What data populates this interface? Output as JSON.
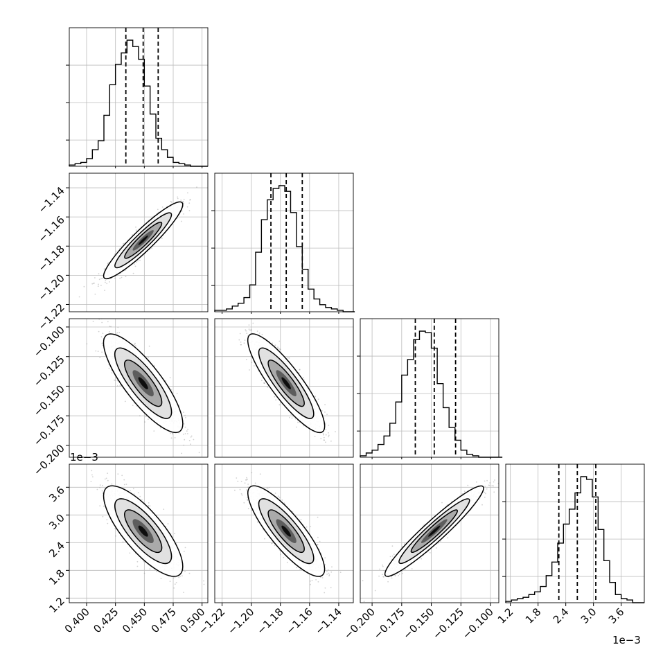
{
  "chart_data": {
    "type": "corner",
    "parameters": [
      {
        "range": [
          0.385,
          0.505
        ],
        "ticks": [
          0.4,
          0.425,
          0.45,
          0.475,
          0.5
        ],
        "tick_labels": [
          "0.400",
          "0.425",
          "0.450",
          "0.475",
          "0.500"
        ],
        "quantiles": [
          0.434,
          0.449,
          0.462
        ],
        "hist": {
          "bin_start": 0.385,
          "bin_width": 0.005,
          "counts": [
            0.01,
            0.02,
            0.03,
            0.06,
            0.13,
            0.2,
            0.4,
            0.64,
            0.8,
            0.89,
            0.99,
            0.94,
            0.84,
            0.63,
            0.41,
            0.22,
            0.13,
            0.07,
            0.03,
            0.02,
            0.01,
            0.0,
            0.0,
            0.0
          ]
        }
      },
      {
        "range": [
          -1.225,
          -1.13
        ],
        "ticks": [
          -1.22,
          -1.2,
          -1.18,
          -1.16,
          -1.14
        ],
        "tick_labels": [
          "−1.22",
          "−1.20",
          "−1.18",
          "−1.16",
          "−1.14"
        ],
        "quantiles": [
          -1.1865,
          -1.176,
          -1.165
        ],
        "hist": {
          "bin_start": -1.225,
          "bin_width": 0.004,
          "counts": [
            0.01,
            0.01,
            0.02,
            0.04,
            0.06,
            0.1,
            0.19,
            0.42,
            0.65,
            0.79,
            0.87,
            0.89,
            0.85,
            0.7,
            0.46,
            0.3,
            0.16,
            0.09,
            0.05,
            0.03,
            0.02,
            0.01,
            0.0,
            0.0
          ]
        }
      },
      {
        "range": [
          -0.21,
          -0.093
        ],
        "ticks": [
          -0.2,
          -0.175,
          -0.15,
          -0.125,
          -0.1
        ],
        "tick_labels": [
          "−0.200",
          "−0.175",
          "−0.150",
          "−0.125",
          "−0.100"
        ],
        "quantiles": [
          -0.1635,
          -0.1475,
          -0.1295
        ],
        "hist": {
          "bin_start": -0.21,
          "bin_width": 0.005,
          "counts": [
            0.01,
            0.03,
            0.05,
            0.09,
            0.15,
            0.24,
            0.39,
            0.58,
            0.69,
            0.83,
            0.89,
            0.88,
            0.77,
            0.52,
            0.35,
            0.21,
            0.12,
            0.05,
            0.02,
            0.01,
            0.0,
            0.0,
            0.0,
            0.0
          ]
        }
      },
      {
        "range": [
          1.1,
          4.1
        ],
        "ticks": [
          1.2,
          1.8,
          2.4,
          3.0,
          3.6
        ],
        "tick_labels": [
          "1.2",
          "1.8",
          "2.4",
          "3.0",
          "3.6"
        ],
        "scale_label": "1e−3",
        "quantiles": [
          2.25,
          2.65,
          3.05
        ],
        "hist": {
          "bin_start": 1.1,
          "bin_width": 0.125,
          "counts": [
            0.01,
            0.02,
            0.03,
            0.04,
            0.06,
            0.08,
            0.12,
            0.2,
            0.3,
            0.44,
            0.58,
            0.69,
            0.81,
            0.93,
            0.91,
            0.78,
            0.54,
            0.31,
            0.15,
            0.06,
            0.03,
            0.02,
            0.0,
            0.0
          ]
        }
      }
    ],
    "pair_correlations": {
      "1-0": 0.93,
      "2-0": -0.82,
      "2-1": -0.87,
      "3-0": -0.78,
      "3-1": -0.84,
      "3-2": 0.95
    },
    "grid": true
  }
}
